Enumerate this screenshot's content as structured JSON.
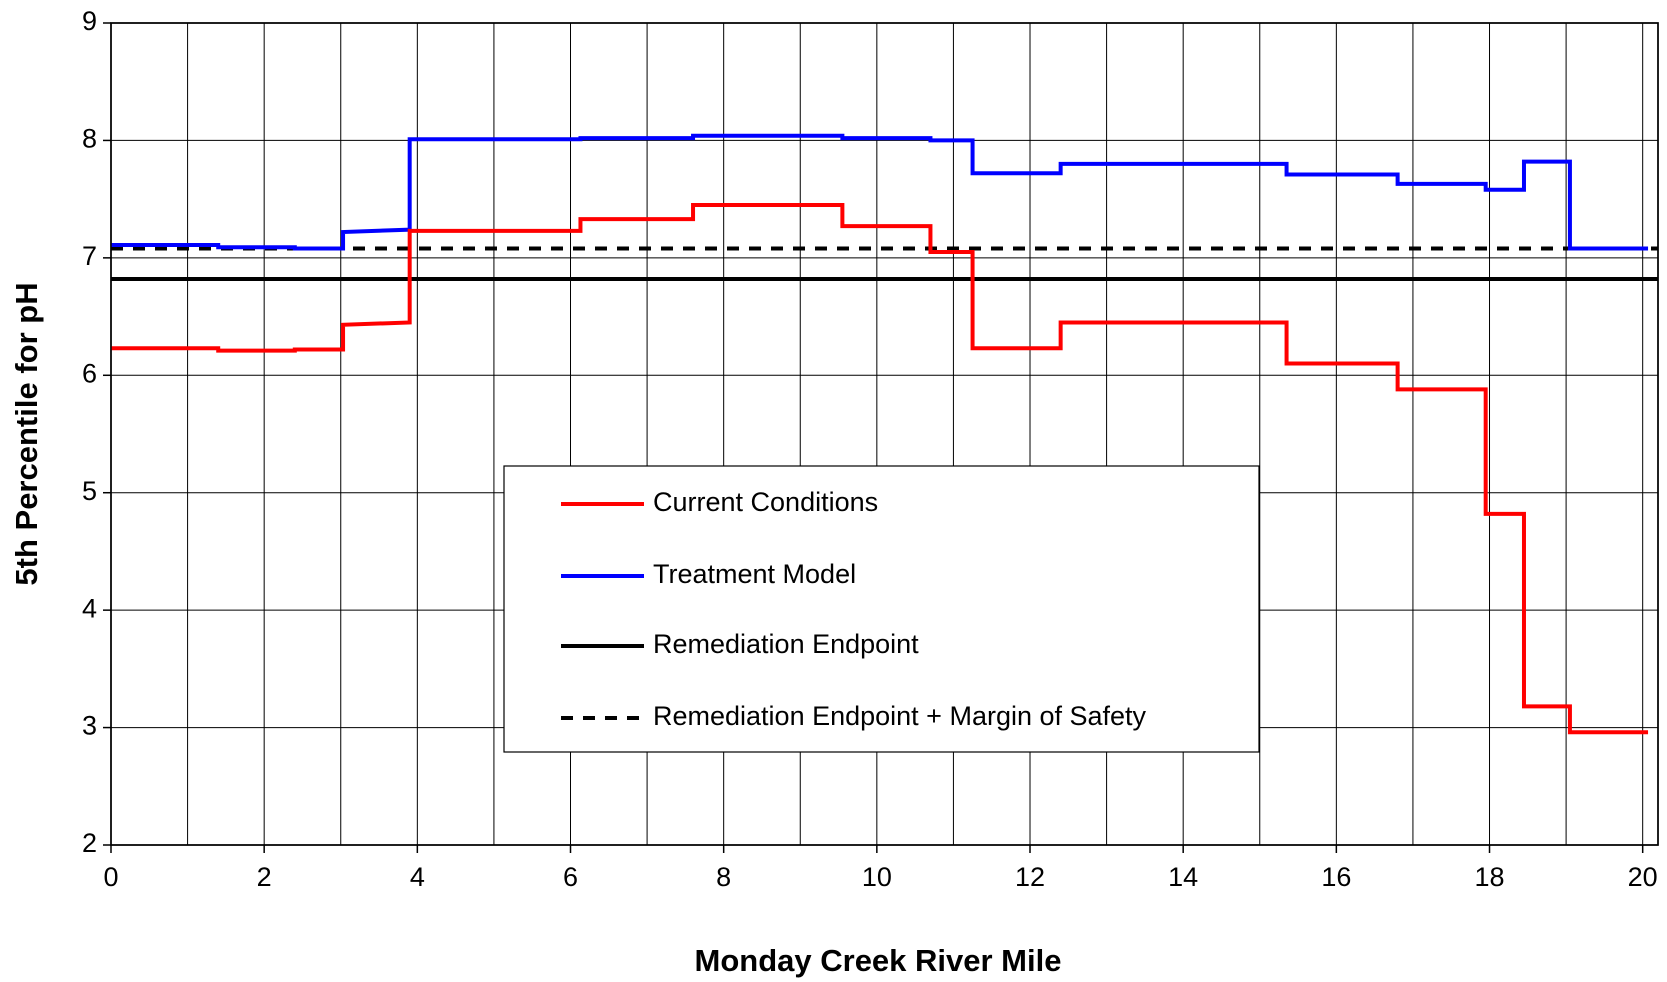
{
  "chart_data": {
    "type": "line",
    "x_label": "Monday Creek River Mile",
    "y_label": "5th Percentile for pH",
    "xlim": [
      0,
      20.2
    ],
    "ylim": [
      2,
      9
    ],
    "xticks": [
      0,
      2,
      4,
      6,
      8,
      10,
      12,
      14,
      16,
      18,
      20
    ],
    "yticks": [
      2,
      3,
      4,
      5,
      6,
      7,
      8,
      9
    ],
    "x_grid_step": 1,
    "grid": true,
    "step": true,
    "series": [
      {
        "name": "Current Conditions",
        "color": "#ff0000",
        "dash": false,
        "x": [
          0,
          1.4,
          1.4,
          2.4,
          2.4,
          3.03,
          3.03,
          3.9,
          3.9,
          6.13,
          6.13,
          7.6,
          7.6,
          9.55,
          9.55,
          10.7,
          10.7,
          11.25,
          11.25,
          12.4,
          12.4,
          15.35,
          15.35,
          16.8,
          16.8,
          17.95,
          17.95,
          18.45,
          18.45,
          19.05,
          19.05,
          20.07
        ],
        "values": [
          6.23,
          6.23,
          6.21,
          6.21,
          6.22,
          6.22,
          6.43,
          6.45,
          7.23,
          7.23,
          7.33,
          7.33,
          7.45,
          7.45,
          7.27,
          7.27,
          7.05,
          7.05,
          6.23,
          6.23,
          6.45,
          6.45,
          6.1,
          6.1,
          5.88,
          5.88,
          4.82,
          4.82,
          3.18,
          3.18,
          2.96,
          2.96
        ]
      },
      {
        "name": "Treatment Model",
        "color": "#0000ff",
        "dash": false,
        "x": [
          0,
          1.4,
          1.4,
          2.4,
          2.4,
          3.03,
          3.03,
          3.9,
          3.9,
          6.13,
          6.13,
          7.6,
          7.6,
          9.55,
          9.55,
          10.7,
          10.7,
          11.25,
          11.25,
          12.4,
          12.4,
          15.35,
          15.35,
          16.8,
          16.8,
          17.95,
          17.95,
          18.45,
          18.45,
          19.05,
          19.05,
          20.07
        ],
        "values": [
          7.11,
          7.11,
          7.09,
          7.09,
          7.08,
          7.08,
          7.22,
          7.24,
          8.01,
          8.01,
          8.02,
          8.02,
          8.04,
          8.04,
          8.02,
          8.02,
          8.0,
          8.0,
          7.72,
          7.72,
          7.8,
          7.8,
          7.71,
          7.71,
          7.63,
          7.63,
          7.58,
          7.58,
          7.82,
          7.82,
          7.08,
          7.08
        ]
      },
      {
        "name": "Remediation Endpoint",
        "color": "#000000",
        "dash": false,
        "x": [
          0,
          20.2
        ],
        "values": [
          6.82,
          6.82
        ]
      },
      {
        "name": "Remediation Endpoint + Margin of Safety",
        "color": "#000000",
        "dash": true,
        "x": [
          0,
          20.2
        ],
        "values": [
          7.08,
          7.08
        ]
      }
    ]
  }
}
